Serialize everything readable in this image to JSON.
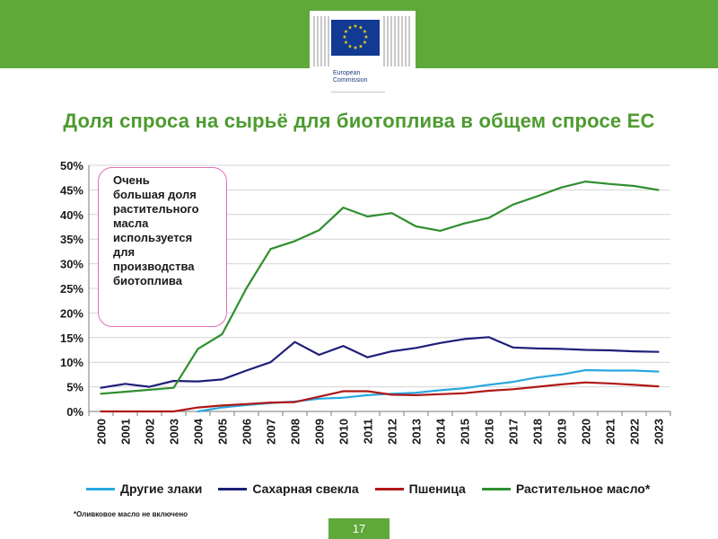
{
  "header": {
    "logo_line1": "European",
    "logo_line2": "Commission",
    "title": "Доля спроса на сырьё для биотоплива в общем спросе ЕС"
  },
  "callout": {
    "text": "Очень\nбольшая доля\nрастительного\nмасла\nиспользуется\nдля\nпроизводства\nбиотоплива"
  },
  "footnote": "*Оливковое масло не включено",
  "page_number": "17",
  "colors": {
    "banner": "#5fa83a",
    "title": "#4d9b2f",
    "other_cereals": "#29a8e0",
    "sugar_beet": "#1f1f7a",
    "wheat": "#b01818",
    "veg_oil": "#2f8f2f",
    "callout_border": "#e070b8"
  },
  "chart_data": {
    "type": "line",
    "title": "Доля спроса на сырьё для биотоплива в общем спросе ЕС",
    "x": [
      "2000",
      "2001",
      "2002",
      "2003",
      "2004",
      "2005",
      "2006",
      "2007",
      "2008",
      "2009",
      "2010",
      "2011",
      "2012",
      "2013",
      "2014",
      "2015",
      "2016",
      "2017",
      "2018",
      "2019",
      "2020",
      "2021",
      "2022",
      "2023"
    ],
    "y_ticks": [
      "0%",
      "5%",
      "10%",
      "15%",
      "20%",
      "25%",
      "30%",
      "35%",
      "40%",
      "45%",
      "50%"
    ],
    "ylim": [
      0,
      50
    ],
    "grid": true,
    "legend_position": "bottom",
    "series": [
      {
        "name": "Другие злаки",
        "color": "#29a8e0",
        "values": [
          null,
          null,
          null,
          null,
          0.0,
          0.8,
          1.3,
          1.7,
          2.0,
          2.6,
          2.8,
          3.3,
          3.6,
          3.8,
          4.3,
          4.7,
          5.4,
          6.0,
          6.9,
          7.5,
          8.4,
          8.3,
          8.3,
          8.1
        ]
      },
      {
        "name": "Сахарная свекла",
        "color": "#1f1f7a",
        "values": [
          4.8,
          5.6,
          5.0,
          6.2,
          6.1,
          6.5,
          8.3,
          10.0,
          14.1,
          11.5,
          13.3,
          11.0,
          12.2,
          12.9,
          13.9,
          14.7,
          15.1,
          13.0,
          12.8,
          12.7,
          12.5,
          12.4,
          12.2,
          12.1
        ]
      },
      {
        "name": "Пшеница",
        "color": "#b01818",
        "values": [
          0.0,
          0.0,
          0.0,
          0.0,
          0.8,
          1.2,
          1.5,
          1.8,
          1.9,
          3.0,
          4.1,
          4.1,
          3.4,
          3.3,
          3.5,
          3.7,
          4.2,
          4.5,
          5.0,
          5.5,
          5.9,
          5.7,
          5.4,
          5.1
        ]
      },
      {
        "name": "Растительное масло*",
        "color": "#2f8f2f",
        "values": [
          3.6,
          4.0,
          4.4,
          4.8,
          12.7,
          15.7,
          25.0,
          33.0,
          34.6,
          36.8,
          41.4,
          39.6,
          40.3,
          37.6,
          36.7,
          38.2,
          39.3,
          42.0,
          43.7,
          45.5,
          46.7,
          46.2,
          45.8,
          45.0
        ]
      }
    ]
  }
}
